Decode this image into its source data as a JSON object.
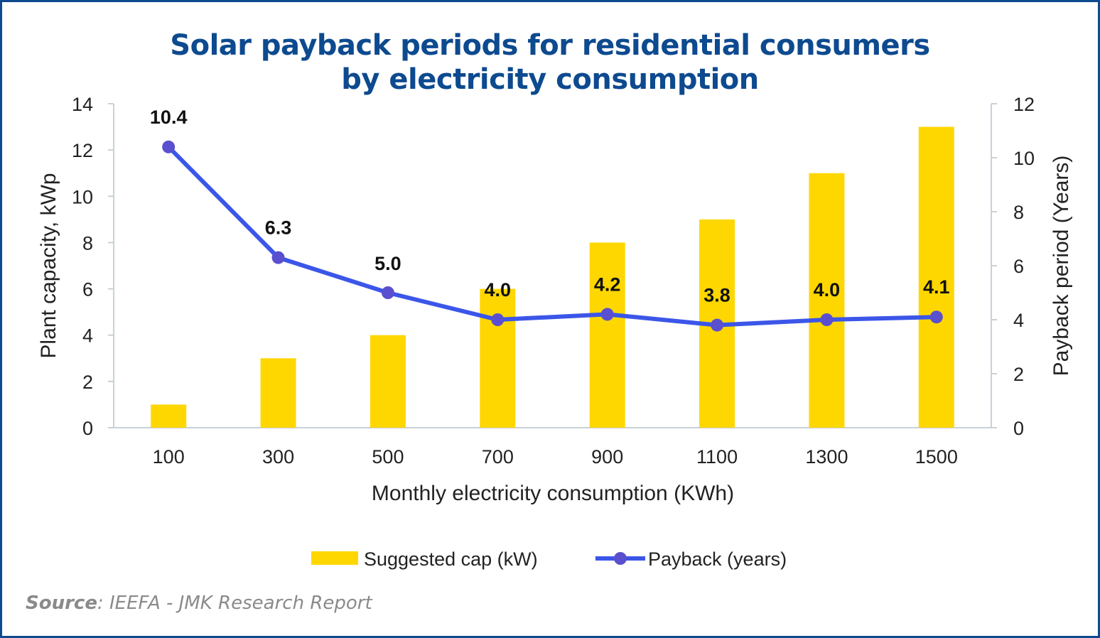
{
  "title_line1": "Solar payback periods for residential consumers",
  "title_line2": "by electricity consumption",
  "source_label": "Source",
  "source_text": ": IEEFA - JMK Research Report",
  "colors": {
    "bar": "#ffd700",
    "line": "#3b56e8",
    "marker": "#5a4fcf",
    "title": "#0d4a8f",
    "axis": "#c8d0d8"
  },
  "chart_data": {
    "type": "bar",
    "categories": [
      "100",
      "300",
      "500",
      "700",
      "900",
      "1100",
      "1300",
      "1500"
    ],
    "series": [
      {
        "name": "Suggested cap (kW)",
        "type": "bar",
        "axis": "left",
        "values": [
          1,
          3,
          4,
          6,
          8,
          9,
          11,
          13
        ]
      },
      {
        "name": "Payback (years)",
        "type": "line",
        "axis": "right",
        "values": [
          10.4,
          6.3,
          5.0,
          4.0,
          4.2,
          3.8,
          4.0,
          4.1
        ],
        "labels": [
          "10.4",
          "6.3",
          "5.0",
          "4.0",
          "4.2",
          "3.8",
          "4.0",
          "4.1"
        ]
      }
    ],
    "xlabel": "Monthly electricity consumption (KWh)",
    "ylabel": "Plant capacity, kWp",
    "y2label": "Payback period (Years)",
    "ylim": [
      0,
      14
    ],
    "y2lim": [
      0,
      12
    ],
    "yticks": [
      "0",
      "2",
      "4",
      "6",
      "8",
      "10",
      "12",
      "14"
    ],
    "y2ticks": [
      "0",
      "2",
      "4",
      "6",
      "8",
      "10",
      "12"
    ],
    "legend": [
      "Suggested cap (kW)",
      "Payback (years)"
    ],
    "legend_position": "bottom"
  }
}
